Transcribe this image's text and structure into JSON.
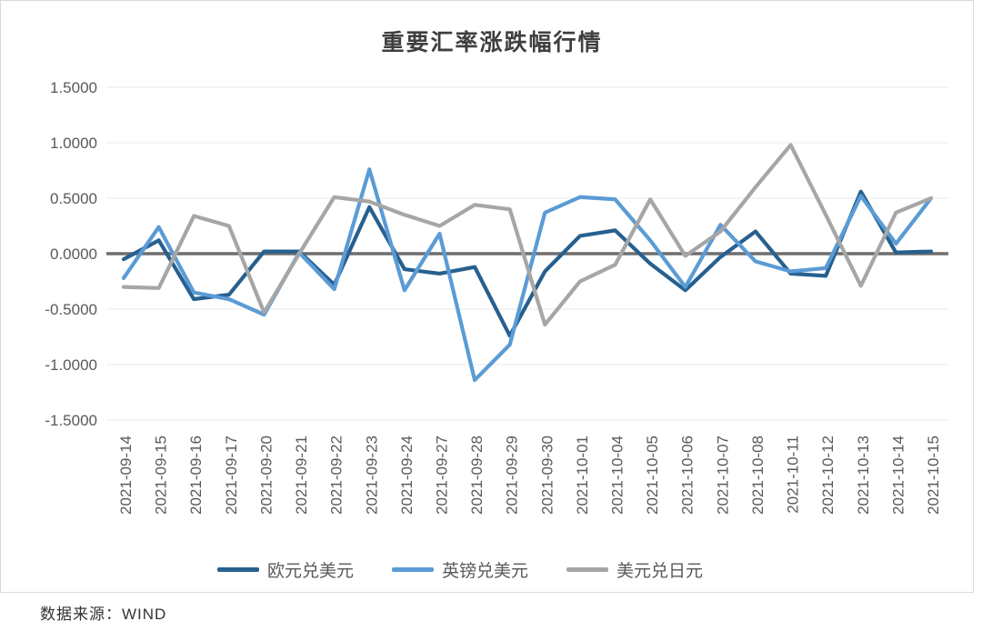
{
  "page": {
    "source_note": "数据来源：WIND"
  },
  "chart_data": {
    "type": "line",
    "title": "重要汇率涨跌幅行情",
    "categories": [
      "2021-09-14",
      "2021-09-15",
      "2021-09-16",
      "2021-09-17",
      "2021-09-20",
      "2021-09-21",
      "2021-09-22",
      "2021-09-23",
      "2021-09-24",
      "2021-09-27",
      "2021-09-28",
      "2021-09-29",
      "2021-09-30",
      "2021-10-01",
      "2021-10-04",
      "2021-10-05",
      "2021-10-06",
      "2021-10-07",
      "2021-10-08",
      "2021-10-11",
      "2021-10-12",
      "2021-10-13",
      "2021-10-14",
      "2021-10-15"
    ],
    "series": [
      {
        "id": "eur-usd",
        "name": "欧元兑美元",
        "color": "#27608F",
        "values": [
          -0.05,
          0.12,
          -0.41,
          -0.37,
          0.02,
          0.02,
          -0.28,
          0.42,
          -0.14,
          -0.18,
          -0.12,
          -0.74,
          -0.16,
          0.16,
          0.21,
          -0.09,
          -0.33,
          -0.03,
          0.2,
          -0.18,
          -0.2,
          0.56,
          0.01,
          0.02
        ]
      },
      {
        "id": "gbp-usd",
        "name": "英镑兑美元",
        "color": "#5B9BD5",
        "values": [
          -0.22,
          0.24,
          -0.35,
          -0.41,
          -0.55,
          0.01,
          -0.32,
          0.76,
          -0.33,
          0.18,
          -1.14,
          -0.82,
          0.37,
          0.51,
          0.49,
          0.12,
          -0.3,
          0.26,
          -0.07,
          -0.16,
          -0.13,
          0.52,
          0.09,
          0.5
        ]
      },
      {
        "id": "usd-jpy",
        "name": "美元兑日元",
        "color": "#A6A6A6",
        "values": [
          -0.3,
          -0.31,
          0.34,
          0.25,
          -0.53,
          0.0,
          0.51,
          0.47,
          0.35,
          0.25,
          0.44,
          0.4,
          -0.64,
          -0.25,
          -0.1,
          0.49,
          -0.02,
          0.2,
          0.6,
          0.98,
          0.35,
          -0.29,
          0.37,
          0.5
        ]
      }
    ],
    "y_axis": {
      "min": -1.5,
      "max": 1.5,
      "tick_labels": [
        "1.5000",
        "1.0000",
        "0.5000",
        "0.0000",
        "-0.5000",
        "-1.0000",
        "-1.5000"
      ]
    },
    "legend_position": "bottom",
    "grid": true,
    "colors": {
      "zero_line": "#6E6E6E",
      "gridline": "#E9E9E9",
      "tick_text": "#595959",
      "title_text": "#3F3F3F"
    }
  }
}
